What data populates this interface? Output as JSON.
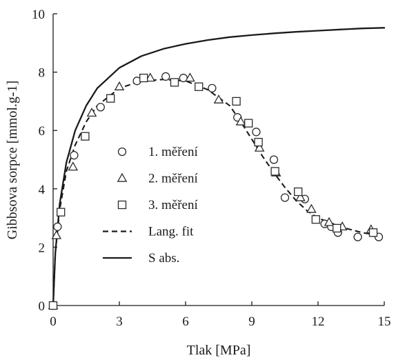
{
  "chart_data": {
    "type": "scatter",
    "xlabel": "Tlak [MPa]",
    "ylabel": "Gibbsova sorpce [mmol.g-1]",
    "xlim": [
      0,
      15
    ],
    "ylim": [
      0,
      10
    ],
    "xticks": [
      0,
      3,
      6,
      9,
      12,
      15
    ],
    "yticks": [
      0,
      2,
      4,
      6,
      8,
      10
    ],
    "grid": false,
    "legend_position": "center-left",
    "series": [
      {
        "name": "1. měření",
        "marker": "circle",
        "x": [
          0.0,
          0.2,
          0.95,
          2.15,
          3.8,
          5.1,
          5.9,
          7.2,
          8.35,
          9.2,
          10.0,
          10.5,
          11.4,
          12.3,
          12.6,
          12.9,
          13.8,
          14.75
        ],
        "y": [
          0.0,
          2.7,
          5.15,
          6.8,
          7.7,
          7.85,
          7.8,
          7.45,
          6.45,
          5.95,
          5.0,
          3.7,
          3.65,
          2.8,
          2.7,
          2.5,
          2.35,
          2.35
        ]
      },
      {
        "name": "2. měření",
        "marker": "triangle",
        "x": [
          0.0,
          0.15,
          0.9,
          1.75,
          3.0,
          4.4,
          6.2,
          7.5,
          8.5,
          9.35,
          10.1,
          11.2,
          11.7,
          12.5,
          13.1,
          14.4
        ],
        "y": [
          0.0,
          2.4,
          4.75,
          6.6,
          7.5,
          7.8,
          7.8,
          7.05,
          6.3,
          5.4,
          4.55,
          3.7,
          3.3,
          2.85,
          2.7,
          2.6
        ]
      },
      {
        "name": "3. měření",
        "marker": "square",
        "x": [
          0.0,
          0.35,
          1.45,
          2.6,
          4.1,
          5.5,
          6.6,
          8.3,
          8.85,
          9.3,
          10.05,
          11.1,
          11.9,
          12.85,
          14.5
        ],
        "y": [
          0.0,
          3.2,
          5.8,
          7.1,
          7.8,
          7.65,
          7.5,
          7.0,
          6.25,
          5.6,
          4.6,
          3.9,
          2.95,
          2.65,
          2.5
        ]
      },
      {
        "name": "Lang. fit",
        "line_style": "dashed",
        "x": [
          0.0,
          0.1,
          0.3,
          0.6,
          1.0,
          1.5,
          2.0,
          3.0,
          4.0,
          5.0,
          6.0,
          7.0,
          8.0,
          8.5,
          9.0,
          9.5,
          10.0,
          10.5,
          11.0,
          11.5,
          12.0,
          12.5,
          13.0,
          14.0,
          14.8
        ],
        "y": [
          0.0,
          1.8,
          3.3,
          4.6,
          5.5,
          6.3,
          6.85,
          7.45,
          7.7,
          7.75,
          7.7,
          7.4,
          6.85,
          6.3,
          5.7,
          5.1,
          4.55,
          4.05,
          3.6,
          3.25,
          3.0,
          2.85,
          2.7,
          2.5,
          2.4
        ]
      },
      {
        "name": "S abs.",
        "line_style": "solid",
        "x": [
          0.0,
          0.1,
          0.3,
          0.6,
          1.0,
          1.5,
          2.0,
          3.0,
          4.0,
          5.0,
          6.0,
          7.0,
          8.0,
          9.0,
          10.0,
          11.0,
          12.0,
          13.0,
          14.0,
          15.0
        ],
        "y": [
          0.0,
          1.8,
          3.5,
          4.9,
          6.0,
          6.85,
          7.45,
          8.15,
          8.55,
          8.8,
          8.97,
          9.1,
          9.2,
          9.27,
          9.33,
          9.38,
          9.42,
          9.46,
          9.5,
          9.52
        ]
      }
    ]
  }
}
